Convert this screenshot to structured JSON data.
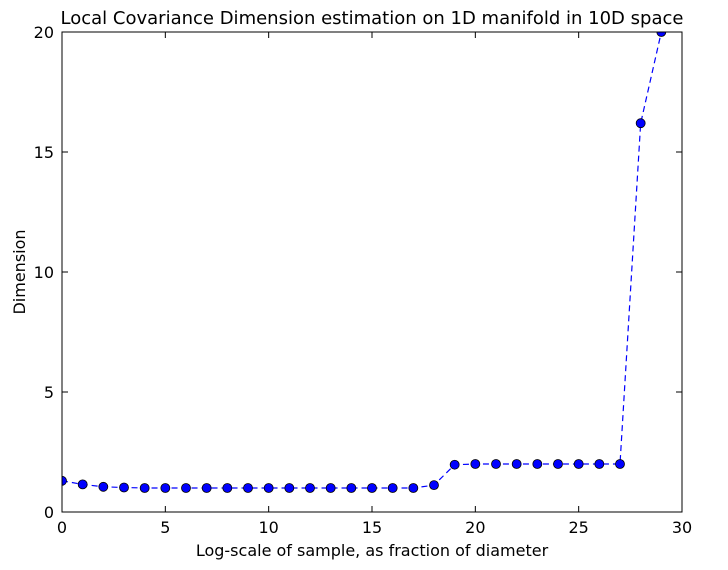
{
  "chart_data": {
    "type": "line",
    "title": "Local Covariance Dimension estimation on 1D manifold in 10D space",
    "xlabel": "Log-scale of sample, as fraction of diameter",
    "ylabel": "Dimension",
    "xlim": [
      0,
      30
    ],
    "ylim": [
      0,
      20
    ],
    "xticks": [
      0,
      5,
      10,
      15,
      20,
      25,
      30
    ],
    "yticks": [
      0,
      5,
      10,
      15,
      20
    ],
    "xtick_labels": [
      "0",
      "5",
      "10",
      "15",
      "20",
      "25",
      "30"
    ],
    "ytick_labels": [
      "0",
      "5",
      "10",
      "15",
      "20"
    ],
    "grid": false,
    "line_style": "dashed",
    "marker": "circle",
    "color": "#0000ff",
    "x": [
      0,
      1,
      2,
      3,
      4,
      5,
      6,
      7,
      8,
      9,
      10,
      11,
      12,
      13,
      14,
      15,
      16,
      17,
      18,
      19,
      20,
      21,
      22,
      23,
      24,
      25,
      26,
      27,
      28,
      29
    ],
    "y": [
      1.3,
      1.15,
      1.05,
      1.02,
      1.0,
      1.0,
      1.0,
      1.0,
      1.0,
      1.0,
      1.0,
      1.0,
      1.0,
      1.0,
      1.0,
      1.0,
      1.0,
      1.0,
      1.12,
      1.97,
      2.0,
      2.0,
      2.0,
      2.0,
      2.0,
      2.0,
      2.0,
      2.0,
      16.2,
      20.0
    ]
  }
}
